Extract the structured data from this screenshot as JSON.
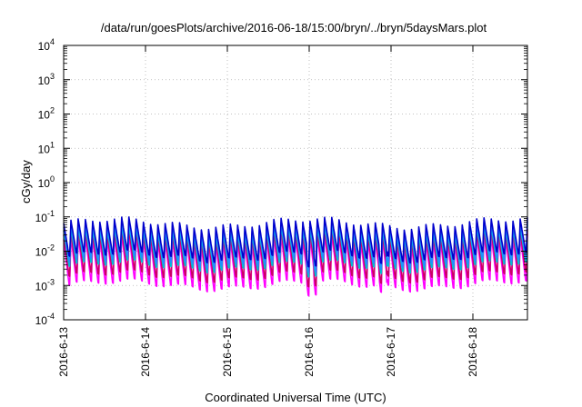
{
  "chart_data": {
    "type": "line",
    "title": "/data/run/goesPlots/archive/2016-06-18/15:00/bryn/../bryn/5daysMars.plot",
    "xlabel": "Coordinated Universal Time (UTC)",
    "ylabel": "cGy/day",
    "yscale": "log",
    "ylim": [
      0.0001,
      10000
    ],
    "xlim": [
      "2016-06-13T00:00",
      "2016-06-18T16:00"
    ],
    "grid": true,
    "legend": "none",
    "x_ticks": [
      "2016-6-13",
      "2016-6-14",
      "2016-6-15",
      "2016-6-16",
      "2016-6-17",
      "2016-6-18"
    ],
    "y_ticks": [
      {
        "base": "10",
        "exp": "-4"
      },
      {
        "base": "10",
        "exp": "-3"
      },
      {
        "base": "10",
        "exp": "-2"
      },
      {
        "base": "10",
        "exp": "-1"
      },
      {
        "base": "10",
        "exp": "0"
      },
      {
        "base": "10",
        "exp": "1"
      },
      {
        "base": "10",
        "exp": "2"
      },
      {
        "base": "10",
        "exp": "3"
      },
      {
        "base": "10",
        "exp": "4"
      }
    ],
    "series": [
      {
        "color": "#0000cc",
        "peak": 0.065,
        "trough": 0.006
      },
      {
        "color": "#1e90ff",
        "peak": 0.05,
        "trough": 0.004
      },
      {
        "color": "#00bcd4",
        "peak": 0.04,
        "trough": 0.003
      },
      {
        "color": "#cc0066",
        "peak": 0.03,
        "trough": 0.0015
      },
      {
        "color": "#ff00ff",
        "peak": 0.022,
        "trough": 0.0008
      }
    ],
    "oscillation_cycles": 64,
    "dips": [
      {
        "at": "2016-06-16T00:20",
        "factor": 0.45
      },
      {
        "at": "2016-06-16T21:00",
        "factor": 0.6
      }
    ]
  }
}
